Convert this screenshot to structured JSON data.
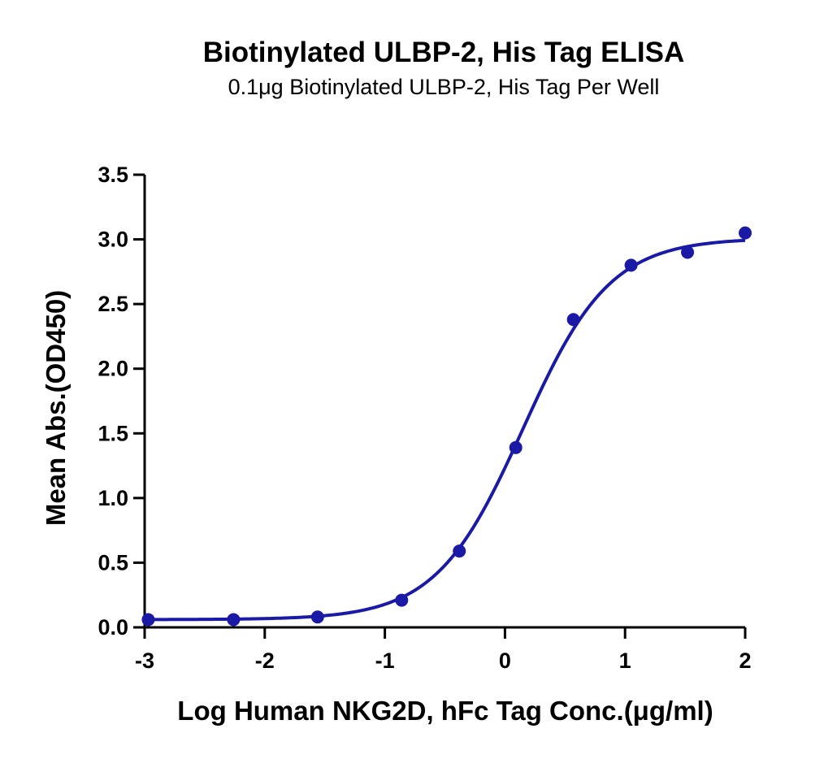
{
  "chart_data": {
    "type": "scatter",
    "title": "Biotinylated ULBP-2, His Tag ELISA",
    "subtitle": "0.1μg Biotinylated ULBP-2, His Tag Per Well",
    "xlabel": "Log Human NKG2D, hFc Tag Conc.(μg/ml)",
    "ylabel": "Mean Abs.(OD450)",
    "xlim": [
      -3,
      2
    ],
    "ylim": [
      0,
      3.5
    ],
    "x_ticks": [
      -3,
      -2,
      -1,
      0,
      1,
      2
    ],
    "x_tick_labels": [
      "-3",
      "-2",
      "-1",
      "0",
      "1",
      "2"
    ],
    "y_ticks": [
      0,
      0.5,
      1,
      1.5,
      2,
      2.5,
      3,
      3.5
    ],
    "y_tick_labels": [
      "0.0",
      "0.5",
      "1.0",
      "1.5",
      "2.0",
      "2.5",
      "3.0",
      "3.5"
    ],
    "grid": false,
    "color": "#1a1aa6",
    "series": [
      {
        "x": [
          -2.97,
          -2.26,
          -1.56,
          -0.86,
          -0.38,
          0.09,
          0.57,
          1.05,
          1.52,
          2.0
        ],
        "y": [
          0.06,
          0.06,
          0.08,
          0.21,
          0.59,
          1.39,
          2.38,
          2.8,
          2.9,
          3.05
        ]
      }
    ],
    "fit_curve": {
      "type": "4PL",
      "bottom": 0.06,
      "top": 3.01,
      "log_ec50": 0.15,
      "hill_slope": 1.2
    }
  }
}
